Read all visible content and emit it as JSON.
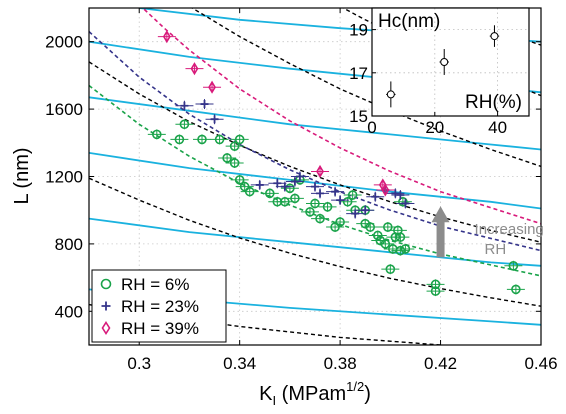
{
  "chart_data": [
    {
      "type": "scatter",
      "xlabel": "K",
      "xlabel_sub": "I",
      "xlabel_unit_prefix": " (MPam",
      "xlabel_unit_sup": "1/2",
      "xlabel_unit_suffix": ")",
      "ylabel": "L (nm)",
      "xlim": [
        0.28,
        0.46
      ],
      "ylim": [
        200,
        2200
      ],
      "xticks": [
        "0.3",
        "0.34",
        "0.38",
        "0.42",
        "0.46"
      ],
      "yticks": [
        "400",
        "800",
        "1200",
        "1600",
        "2000"
      ],
      "grid": true,
      "legend_position": "bottom-left",
      "colors": {
        "rh6": "#1aa34a",
        "rh23": "#35348a",
        "rh39": "#d81b7b",
        "cyan": "#1ab2df",
        "black": "#000000",
        "arrow": "#8c8c8c"
      },
      "series": [
        {
          "name": "RH = 6%",
          "marker": "circle",
          "color": "#1aa34a",
          "points": [
            [
              0.307,
              1450
            ],
            [
              0.316,
              1420
            ],
            [
              0.318,
              1510
            ],
            [
              0.325,
              1420
            ],
            [
              0.332,
              1420
            ],
            [
              0.335,
              1310
            ],
            [
              0.338,
              1380
            ],
            [
              0.338,
              1280
            ],
            [
              0.34,
              1420
            ],
            [
              0.34,
              1180
            ],
            [
              0.342,
              1140
            ],
            [
              0.344,
              1110
            ],
            [
              0.352,
              1100
            ],
            [
              0.355,
              1050
            ],
            [
              0.358,
              1050
            ],
            [
              0.36,
              1130
            ],
            [
              0.362,
              1070
            ],
            [
              0.364,
              1180
            ],
            [
              0.368,
              990
            ],
            [
              0.37,
              1040
            ],
            [
              0.372,
              950
            ],
            [
              0.375,
              1020
            ],
            [
              0.378,
              900
            ],
            [
              0.38,
              930
            ],
            [
              0.383,
              1050
            ],
            [
              0.385,
              1090
            ],
            [
              0.386,
              1000
            ],
            [
              0.39,
              920
            ],
            [
              0.39,
              1000
            ],
            [
              0.392,
              900
            ],
            [
              0.395,
              850
            ],
            [
              0.396,
              820
            ],
            [
              0.398,
              800
            ],
            [
              0.399,
              900
            ],
            [
              0.4,
              650
            ],
            [
              0.401,
              770
            ],
            [
              0.402,
              840
            ],
            [
              0.403,
              880
            ],
            [
              0.404,
              760
            ],
            [
              0.404,
              840
            ],
            [
              0.405,
              1050
            ],
            [
              0.406,
              770
            ],
            [
              0.418,
              560
            ],
            [
              0.418,
              520
            ],
            [
              0.449,
              670
            ],
            [
              0.45,
              530
            ]
          ]
        },
        {
          "name": "RH = 23%",
          "marker": "plus",
          "color": "#35348a",
          "points": [
            [
              0.318,
              1620
            ],
            [
              0.326,
              1630
            ],
            [
              0.33,
              1540
            ],
            [
              0.348,
              1150
            ],
            [
              0.355,
              1160
            ],
            [
              0.358,
              1140
            ],
            [
              0.362,
              1170
            ],
            [
              0.364,
              1200
            ],
            [
              0.37,
              1140
            ],
            [
              0.372,
              1100
            ],
            [
              0.378,
              1110
            ],
            [
              0.38,
              1060
            ],
            [
              0.386,
              980
            ],
            [
              0.39,
              1000
            ],
            [
              0.394,
              1080
            ],
            [
              0.398,
              1120
            ],
            [
              0.402,
              1100
            ],
            [
              0.404,
              1090
            ],
            [
              0.406,
              1040
            ]
          ]
        },
        {
          "name": "RH = 39%",
          "marker": "diamond",
          "color": "#d81b7b",
          "points": [
            [
              0.311,
              2030
            ],
            [
              0.322,
              1840
            ],
            [
              0.329,
              1730
            ],
            [
              0.372,
              1230
            ],
            [
              0.397,
              1150
            ],
            [
              0.398,
              1120
            ]
          ]
        }
      ],
      "fit_curves_colored": [
        {
          "series": "RH = 6%",
          "color": "#1aa34a",
          "x": [
            0.28,
            0.3,
            0.32,
            0.34,
            0.36,
            0.38,
            0.4,
            0.42,
            0.46
          ],
          "y": [
            1740,
            1510,
            1320,
            1160,
            1030,
            915,
            820,
            740,
            610
          ]
        },
        {
          "series": "RH = 23%",
          "color": "#35348a",
          "x": [
            0.28,
            0.3,
            0.32,
            0.34,
            0.36,
            0.38,
            0.4,
            0.42,
            0.46
          ],
          "y": [
            2060,
            1790,
            1570,
            1390,
            1240,
            1110,
            1000,
            905,
            760
          ]
        },
        {
          "series": "RH = 39%",
          "color": "#d81b7b",
          "x": [
            0.3,
            0.31,
            0.32,
            0.34,
            0.36,
            0.38,
            0.4,
            0.42,
            0.46
          ],
          "y": [
            2220,
            2080,
            1950,
            1720,
            1530,
            1370,
            1230,
            1110,
            920
          ]
        }
      ],
      "iso_curves_black": [
        {
          "x": [
            0.28,
            0.3,
            0.34,
            0.38,
            0.42,
            0.46
          ],
          "y": [
            185,
            175,
            155,
            140,
            130,
            120
          ]
        },
        {
          "x": [
            0.28,
            0.3,
            0.34,
            0.38,
            0.42,
            0.46
          ],
          "y": [
            440,
            390,
            310,
            245,
            200,
            170
          ]
        },
        {
          "x": [
            0.28,
            0.3,
            0.32,
            0.34,
            0.36,
            0.38,
            0.4,
            0.42,
            0.44,
            0.46
          ],
          "y": [
            1190,
            1060,
            940,
            835,
            745,
            665,
            595,
            535,
            480,
            430
          ]
        },
        {
          "x": [
            0.28,
            0.3,
            0.32,
            0.34,
            0.36,
            0.38,
            0.4,
            0.42,
            0.44,
            0.46
          ],
          "y": [
            1880,
            1690,
            1525,
            1385,
            1260,
            1150,
            1050,
            960,
            880,
            810
          ]
        },
        {
          "x": [
            0.32,
            0.33,
            0.34,
            0.36,
            0.38,
            0.4,
            0.42,
            0.44,
            0.46
          ],
          "y": [
            2210,
            2120,
            2030,
            1870,
            1720,
            1590,
            1470,
            1360,
            1260
          ]
        },
        {
          "x": [
            0.38,
            0.39,
            0.4,
            0.42,
            0.44,
            0.46
          ],
          "y": [
            2210,
            2130,
            2060,
            1920,
            1800,
            1680
          ]
        },
        {
          "x": [
            0.42,
            0.43,
            0.44,
            0.45,
            0.46
          ],
          "y": [
            2210,
            2150,
            2090,
            2030,
            1980
          ]
        }
      ],
      "iso_curves_cyan": [
        {
          "x": [
            0.28,
            0.32,
            0.36,
            0.4,
            0.44,
            0.46
          ],
          "y": [
            530,
            470,
            420,
            380,
            340,
            320
          ]
        },
        {
          "x": [
            0.28,
            0.32,
            0.36,
            0.4,
            0.44,
            0.46
          ],
          "y": [
            950,
            870,
            810,
            750,
            690,
            670
          ]
        },
        {
          "x": [
            0.28,
            0.32,
            0.36,
            0.4,
            0.44,
            0.46
          ],
          "y": [
            1340,
            1250,
            1180,
            1110,
            1050,
            1010
          ]
        },
        {
          "x": [
            0.28,
            0.32,
            0.36,
            0.4,
            0.44,
            0.46
          ],
          "y": [
            1670,
            1590,
            1510,
            1450,
            1390,
            1360
          ]
        },
        {
          "x": [
            0.28,
            0.32,
            0.36,
            0.4,
            0.44,
            0.46
          ],
          "y": [
            2000,
            1910,
            1840,
            1780,
            1730,
            1700
          ]
        },
        {
          "x": [
            0.3,
            0.34,
            0.38,
            0.42,
            0.46
          ],
          "y": [
            2200,
            2130,
            2080,
            2040,
            2000
          ]
        }
      ],
      "annotations": [
        {
          "text_lines": [
            "Increasing",
            "RH"
          ],
          "arrow": "up",
          "x": 0.42,
          "y_from": 720,
          "y_to": 1000
        }
      ]
    },
    {
      "type": "scatter",
      "title": "Hc(nm)",
      "xlabel": "RH(%)",
      "xlim": [
        0,
        50
      ],
      "ylim": [
        15,
        20
      ],
      "xticks": [
        "0",
        "20",
        "40"
      ],
      "yticks": [
        "15",
        "17",
        "19"
      ],
      "grid": true,
      "series": [
        {
          "name": "",
          "marker": "circle",
          "color": "#000000",
          "x": [
            6,
            23,
            39
          ],
          "y": [
            16.0,
            17.5,
            18.7
          ],
          "yerr": [
            0.6,
            0.6,
            0.5
          ],
          "xerr": [
            1.5,
            1.5,
            1.5
          ]
        }
      ]
    }
  ]
}
